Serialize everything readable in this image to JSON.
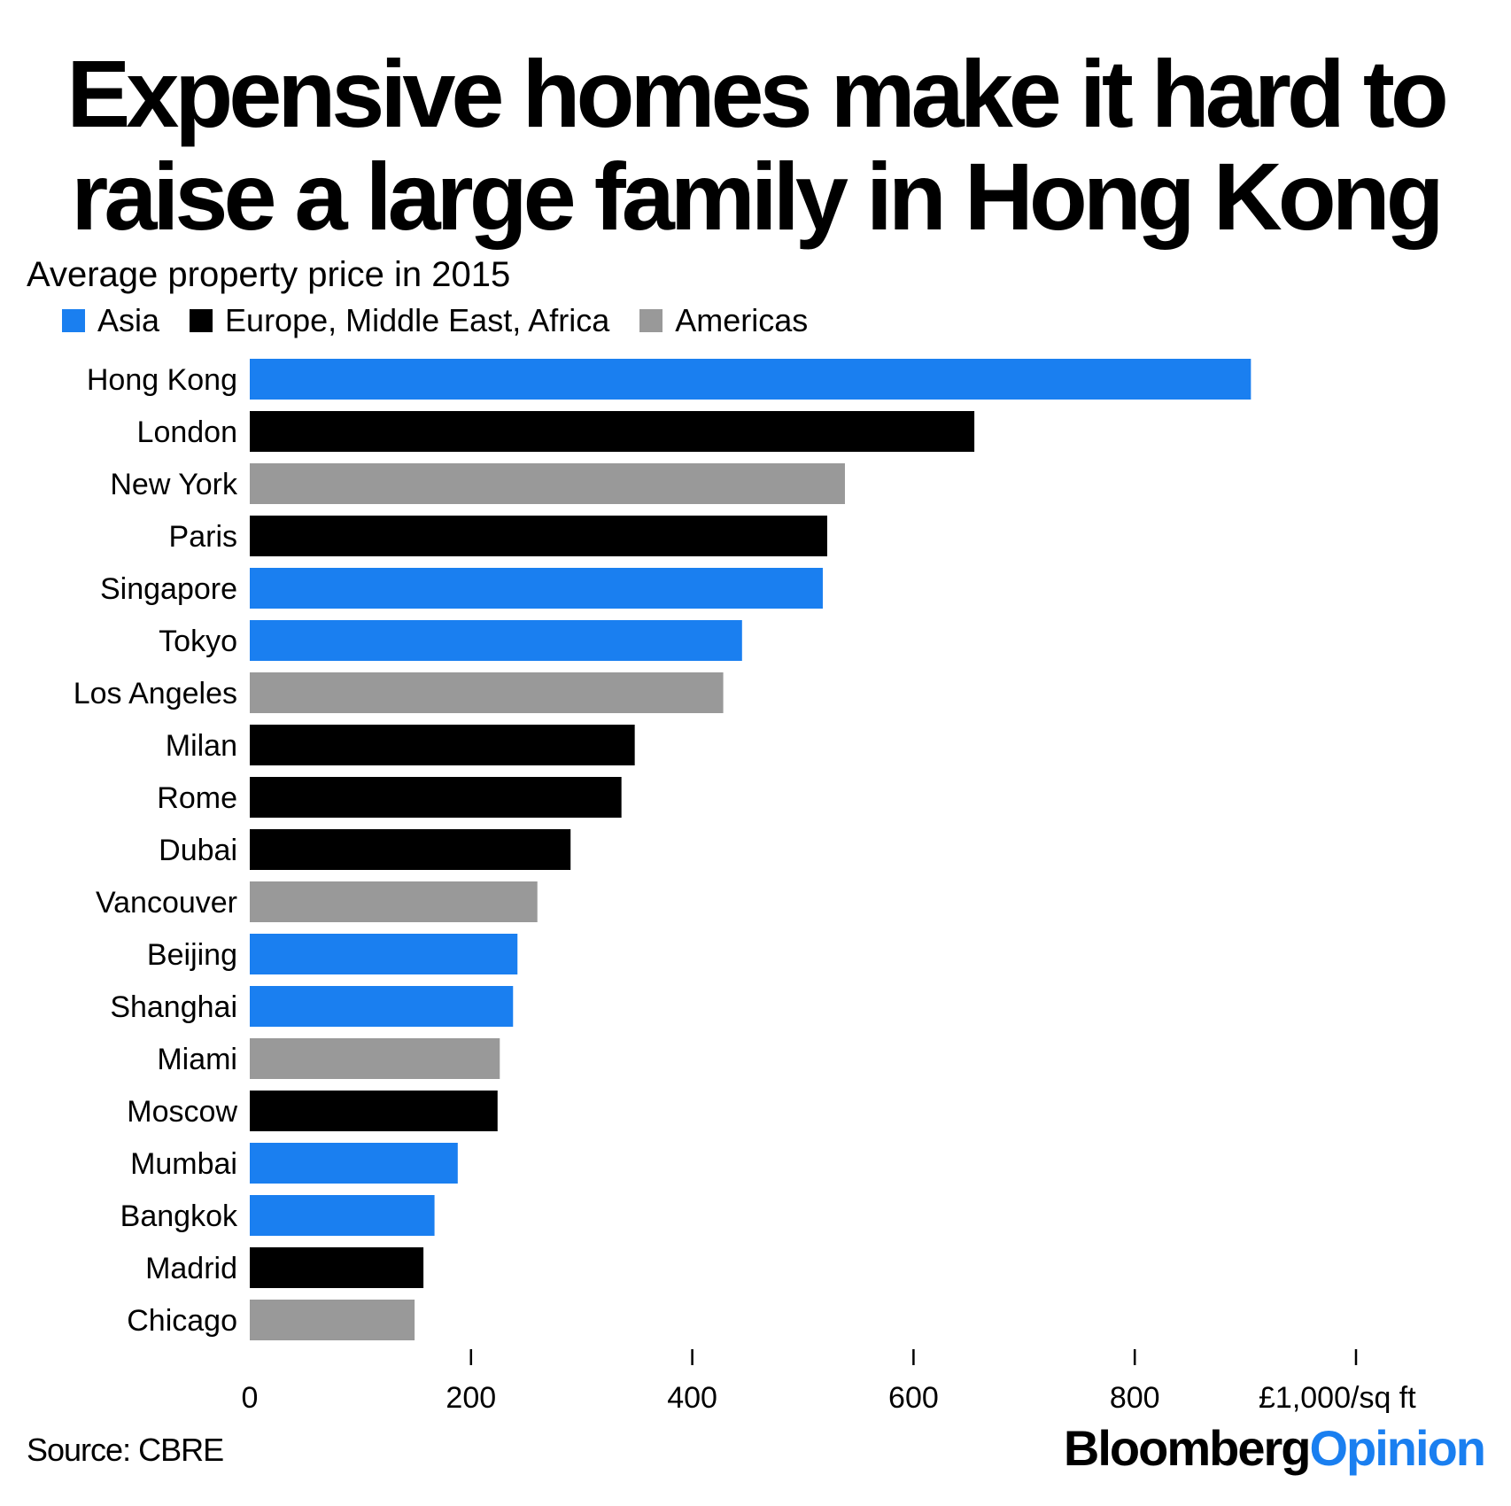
{
  "header": {
    "title_line1": "Expensive homes make it hard to",
    "title_line2": "raise a large family in Hong Kong",
    "subtitle": "Average property price in 2015"
  },
  "legend": [
    {
      "label": "Asia",
      "color": "#1a7ff0"
    },
    {
      "label": "Europe, Middle East, Africa",
      "color": "#000000"
    },
    {
      "label": "Americas",
      "color": "#999999"
    }
  ],
  "footer": {
    "source": "Source: CBRE",
    "brand_part1": "Bloomberg",
    "brand_part2": "Opinion"
  },
  "chart_data": {
    "type": "bar",
    "orientation": "horizontal",
    "title": "Expensive homes make it hard to raise a large family in Hong Kong",
    "subtitle": "Average property price in 2015",
    "xlabel": "",
    "ylabel": "",
    "unit_label": "£1,000/sq ft",
    "xlim": [
      0,
      1000
    ],
    "xticks": [
      0,
      200,
      400,
      600,
      800,
      1000
    ],
    "tick_labels": [
      "0",
      "200",
      "400",
      "600",
      "800",
      "£1,000/sq ft"
    ],
    "grid": false,
    "legend_position": "top-left",
    "categories": [
      "Hong Kong",
      "London",
      "New York",
      "Paris",
      "Singapore",
      "Tokyo",
      "Los Angeles",
      "Milan",
      "Rome",
      "Dubai",
      "Vancouver",
      "Beijing",
      "Shanghai",
      "Miami",
      "Moscow",
      "Mumbai",
      "Bangkok",
      "Madrid",
      "Chicago"
    ],
    "values": [
      905,
      655,
      538,
      522,
      518,
      445,
      428,
      348,
      336,
      290,
      260,
      242,
      238,
      226,
      224,
      188,
      167,
      157,
      149
    ],
    "regions": [
      "Asia",
      "Europe, Middle East, Africa",
      "Americas",
      "Europe, Middle East, Africa",
      "Asia",
      "Asia",
      "Americas",
      "Europe, Middle East, Africa",
      "Europe, Middle East, Africa",
      "Europe, Middle East, Africa",
      "Americas",
      "Asia",
      "Asia",
      "Americas",
      "Europe, Middle East, Africa",
      "Asia",
      "Asia",
      "Europe, Middle East, Africa",
      "Americas"
    ],
    "region_colors": {
      "Asia": "#1a7ff0",
      "Europe, Middle East, Africa": "#000000",
      "Americas": "#999999"
    }
  }
}
